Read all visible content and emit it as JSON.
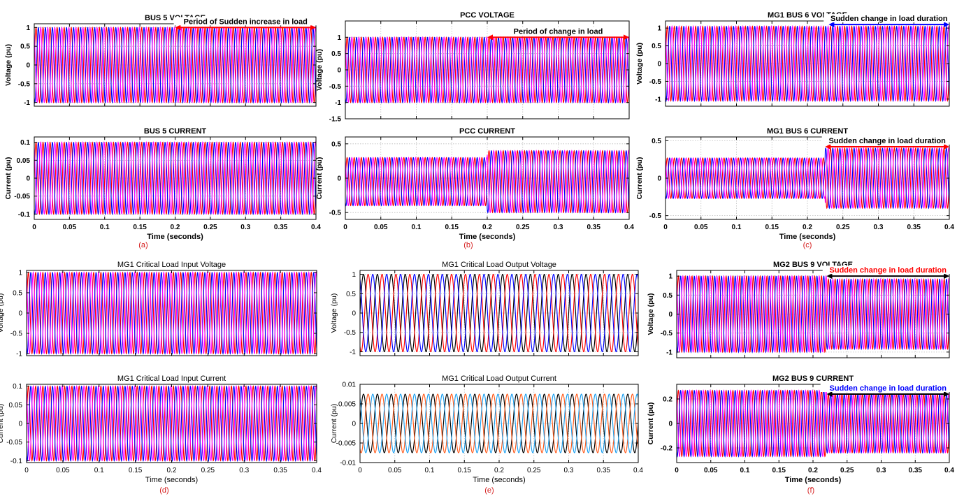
{
  "figure": {
    "subfigure_labels": [
      "(a)",
      "(b)",
      "(c)",
      "(d)",
      "(e)",
      "(f)"
    ],
    "label_color": "#d62020"
  },
  "colors": {
    "phase_a": "#ff0000",
    "phase_b": "#0000ff",
    "phase_c": "#ff00ff",
    "black": "#000000",
    "orange": "#ff5a1a",
    "light_blue": "#1ea0f0",
    "annotation_red": "#ff0000",
    "annotation_blue": "#0000ff",
    "annotation_black": "#000000",
    "grid": "#bdbdbd"
  },
  "chart_data": [
    {
      "id": "a-top",
      "type": "line",
      "title": "BUS 5 VOLTAGE",
      "title_bold": true,
      "xlabel": "",
      "ylabel": "Voltage (pu)",
      "xlim": [
        0,
        0.4
      ],
      "ylim": [
        -1.1,
        1.1
      ],
      "yticks": [
        -1,
        -0.5,
        0,
        0.5,
        1
      ],
      "ytick_labels": [
        "-1",
        "-0.5",
        "0",
        "0.5",
        "1"
      ],
      "xticks": [
        0,
        0.05,
        0.1,
        0.15,
        0.2,
        0.25,
        0.3,
        0.35,
        0.4
      ],
      "xtick_labels": [],
      "grid": true,
      "frequency_hz": 100,
      "series": [
        {
          "color": "phase_a",
          "amplitude": 1.0,
          "phase_deg": 0
        },
        {
          "color": "phase_b",
          "amplitude": 1.0,
          "phase_deg": -120
        },
        {
          "color": "phase_c",
          "amplitude": 1.0,
          "phase_deg": 120
        }
      ],
      "annotation": {
        "text": "Period of Sudden increase in load",
        "x_start": 0.2,
        "x_end": 0.4,
        "y": 1.0,
        "color": "annotation_red",
        "text_color": "annotation_black"
      }
    },
    {
      "id": "a-bottom",
      "type": "line",
      "title": "BUS 5 CURRENT",
      "title_bold": true,
      "xlabel": "Time (seconds)",
      "ylabel": "Current (pu)",
      "xlim": [
        0,
        0.4
      ],
      "ylim": [
        -0.115,
        0.115
      ],
      "yticks": [
        -0.1,
        -0.05,
        0,
        0.05,
        0.1
      ],
      "ytick_labels": [
        "-0.1",
        "-0.05",
        "0",
        "0.05",
        "0.1"
      ],
      "xticks": [
        0,
        0.05,
        0.1,
        0.15,
        0.2,
        0.25,
        0.3,
        0.35,
        0.4
      ],
      "xtick_labels": [
        "0",
        "0.05",
        "0.1",
        "0.15",
        "0.2",
        "0.25",
        "0.3",
        "0.35",
        "0.4"
      ],
      "grid": true,
      "frequency_hz": 100,
      "series": [
        {
          "color": "phase_a",
          "amplitude": 0.1,
          "phase_deg": 0
        },
        {
          "color": "phase_b",
          "amplitude": 0.1,
          "phase_deg": -120
        },
        {
          "color": "phase_c",
          "amplitude": 0.1,
          "phase_deg": 120
        }
      ]
    },
    {
      "id": "b-top",
      "type": "line",
      "title": "PCC VOLTAGE",
      "title_bold": true,
      "xlabel": "",
      "ylabel": "Voltage (pu)",
      "xlim": [
        0,
        0.4
      ],
      "ylim": [
        -1.5,
        1.5
      ],
      "yticks": [
        -1.5,
        -1,
        -0.5,
        0,
        0.5,
        1
      ],
      "ytick_labels": [
        "-1.5",
        "-1",
        "-0.5",
        "0",
        "0.5",
        "1"
      ],
      "xticks": [
        0,
        0.05,
        0.1,
        0.15,
        0.2,
        0.25,
        0.3,
        0.35,
        0.4
      ],
      "xtick_labels": [],
      "grid": true,
      "frequency_hz": 100,
      "series": [
        {
          "color": "phase_a",
          "amplitude": 1.0,
          "phase_deg": 0
        },
        {
          "color": "phase_b",
          "amplitude": 1.0,
          "phase_deg": -120
        },
        {
          "color": "phase_c",
          "amplitude": 1.0,
          "phase_deg": 120
        }
      ],
      "annotation": {
        "text": "Period of change in load",
        "x_start": 0.2,
        "x_end": 0.4,
        "y": 1.0,
        "color": "annotation_red",
        "text_color": "annotation_black"
      }
    },
    {
      "id": "b-bottom",
      "type": "line",
      "title": "PCC CURRENT",
      "title_bold": true,
      "xlabel": "Time (seconds)",
      "ylabel": "Current (pu)",
      "xlim": [
        0,
        0.4
      ],
      "ylim": [
        -0.6,
        0.6
      ],
      "yticks": [
        -0.5,
        0,
        0.5
      ],
      "ytick_labels": [
        "-0.5",
        "0",
        "0.5"
      ],
      "xticks": [
        0,
        0.05,
        0.1,
        0.15,
        0.2,
        0.25,
        0.3,
        0.35,
        0.4
      ],
      "xtick_labels": [
        "0",
        "0.05",
        "0.1",
        "0.15",
        "0.2",
        "0.25",
        "0.3",
        "0.35",
        "0.4"
      ],
      "grid": true,
      "frequency_hz": 100,
      "amplitude_before": 0.35,
      "amplitude_after": 0.45,
      "step_time": 0.2,
      "dc_offset": -0.05,
      "series": [
        {
          "color": "phase_a",
          "amplitude": 0.35,
          "phase_deg": 0
        },
        {
          "color": "phase_b",
          "amplitude": 0.35,
          "phase_deg": -120
        },
        {
          "color": "phase_c",
          "amplitude": 0.35,
          "phase_deg": 120
        }
      ]
    },
    {
      "id": "c-top",
      "type": "line",
      "title": "MG1 BUS 6 VOLTAGE",
      "title_bold": true,
      "xlabel": "",
      "ylabel": "Voltage (pu)",
      "xlim": [
        0,
        0.4
      ],
      "ylim": [
        -1.2,
        1.2
      ],
      "yticks": [
        -1,
        -0.5,
        0,
        0.5,
        1
      ],
      "ytick_labels": [
        "-1",
        "-0.5",
        "0",
        "0.5",
        "1"
      ],
      "xticks": [
        0,
        0.05,
        0.1,
        0.15,
        0.2,
        0.25,
        0.3,
        0.35,
        0.4
      ],
      "xtick_labels": [],
      "grid": true,
      "frequency_hz": 100,
      "series": [
        {
          "color": "phase_a",
          "amplitude": 1.05,
          "phase_deg": 0
        },
        {
          "color": "phase_b",
          "amplitude": 1.05,
          "phase_deg": -120
        },
        {
          "color": "phase_c",
          "amplitude": 1.05,
          "phase_deg": 120
        }
      ],
      "annotation": {
        "text": "Sudden change in load duration",
        "x_start": 0.23,
        "x_end": 0.4,
        "y": 1.1,
        "color": "annotation_blue",
        "text_color": "annotation_black"
      }
    },
    {
      "id": "c-bottom",
      "type": "line",
      "title": "MG1 BUS 6 CURRENT",
      "title_bold": true,
      "xlabel": "Time (seconds)",
      "ylabel": "Current (pu)",
      "xlim": [
        0,
        0.4
      ],
      "ylim": [
        -0.55,
        0.55
      ],
      "yticks": [
        -0.5,
        0,
        0.5
      ],
      "ytick_labels": [
        "-0.5",
        "0",
        "0.5"
      ],
      "xticks": [
        0,
        0.05,
        0.1,
        0.15,
        0.2,
        0.25,
        0.3,
        0.35,
        0.4
      ],
      "xtick_labels": [
        "0",
        "0.05",
        "0.1",
        "0.15",
        "0.2",
        "0.25",
        "0.3",
        "0.35",
        "0.4"
      ],
      "grid": true,
      "frequency_hz": 100,
      "amplitude_before": 0.27,
      "amplitude_after": 0.4,
      "step_time": 0.225,
      "series": [
        {
          "color": "phase_a",
          "amplitude": 0.27,
          "phase_deg": 0
        },
        {
          "color": "phase_b",
          "amplitude": 0.27,
          "phase_deg": -120
        },
        {
          "color": "phase_c",
          "amplitude": 0.27,
          "phase_deg": 120
        }
      ],
      "annotation": {
        "text": "Sudden change in load duration",
        "x_start": 0.225,
        "x_end": 0.4,
        "y": 0.42,
        "color": "annotation_red",
        "text_color": "annotation_black"
      }
    },
    {
      "id": "d-top",
      "type": "line",
      "title": "MG1 Critical Load Input Voltage",
      "title_bold": false,
      "xlabel": "",
      "ylabel": "Voltage (pu)",
      "xlim": [
        0,
        0.4
      ],
      "ylim": [
        -1.05,
        1.05
      ],
      "yticks": [
        -1,
        -0.5,
        0,
        0.5,
        1
      ],
      "ytick_labels": [
        "-1",
        "-0.5",
        "0",
        "0.5",
        "1"
      ],
      "xticks": [
        0,
        0.05,
        0.1,
        0.15,
        0.2,
        0.25,
        0.3,
        0.35,
        0.4
      ],
      "xtick_labels": [],
      "grid": false,
      "frequency_hz": 100,
      "series": [
        {
          "color": "phase_a",
          "amplitude": 1.0,
          "phase_deg": 0
        },
        {
          "color": "phase_b",
          "amplitude": 1.0,
          "phase_deg": -120
        },
        {
          "color": "phase_c",
          "amplitude": 1.0,
          "phase_deg": 120
        }
      ]
    },
    {
      "id": "d-bottom",
      "type": "line",
      "title": "MG1 Critical Load Input Current",
      "title_bold": false,
      "xlabel": "Time (seconds)",
      "ylabel": "Current (pu)",
      "xlim": [
        0,
        0.4
      ],
      "ylim": [
        -0.105,
        0.105
      ],
      "yticks": [
        -0.1,
        -0.05,
        0,
        0.05,
        0.1
      ],
      "ytick_labels": [
        "-0.1",
        "-0.05",
        "0",
        "0.05",
        "0.1"
      ],
      "xticks": [
        0,
        0.05,
        0.1,
        0.15,
        0.2,
        0.25,
        0.3,
        0.35,
        0.4
      ],
      "xtick_labels": [
        "0",
        "0.05",
        "0.1",
        "0.15",
        "0.2",
        "0.25",
        "0.3",
        "0.35",
        "0.4"
      ],
      "grid": false,
      "frequency_hz": 100,
      "series": [
        {
          "color": "phase_a",
          "amplitude": 0.1,
          "phase_deg": 0
        },
        {
          "color": "phase_b",
          "amplitude": 0.1,
          "phase_deg": -120
        },
        {
          "color": "phase_c",
          "amplitude": 0.1,
          "phase_deg": 120
        }
      ]
    },
    {
      "id": "e-top",
      "type": "line",
      "title": "MG1 Critical  Load  Output  Voltage",
      "title_bold": false,
      "xlabel": "",
      "ylabel": "Voltage (pu)",
      "xlim": [
        0,
        0.4
      ],
      "ylim": [
        -1.1,
        1.1
      ],
      "yticks": [
        -1,
        -0.5,
        0,
        0.5,
        1
      ],
      "ytick_labels": [
        "-1",
        "-0.5",
        "0",
        "0.5",
        "1"
      ],
      "xticks": [
        0,
        0.05,
        0.1,
        0.15,
        0.2,
        0.25,
        0.3,
        0.35,
        0.4
      ],
      "xtick_labels": [],
      "grid": true,
      "frequency_hz": 50,
      "series": [
        {
          "color": "black",
          "amplitude": 1.0,
          "phase_deg": 0
        },
        {
          "color": "phase_a",
          "amplitude": 1.0,
          "phase_deg": -120
        },
        {
          "color": "phase_b",
          "amplitude": 1.0,
          "phase_deg": 120
        }
      ]
    },
    {
      "id": "e-bottom",
      "type": "line",
      "title": "MG1 Critical Load Output  Current",
      "title_bold": false,
      "xlabel": "Time (seconds)",
      "ylabel": "Current (pu)",
      "xlim": [
        0,
        0.4
      ],
      "ylim": [
        -0.01,
        0.01
      ],
      "yticks": [
        -0.01,
        -0.005,
        0,
        0.005,
        0.01
      ],
      "ytick_labels": [
        "-0.01",
        "-0.005",
        "0",
        "0.005",
        "0.01"
      ],
      "xticks": [
        0,
        0.05,
        0.1,
        0.15,
        0.2,
        0.25,
        0.3,
        0.35,
        0.4
      ],
      "xtick_labels": [
        "0",
        "0.05",
        "0.1",
        "0.15",
        "0.2",
        "0.25",
        "0.3",
        "0.35",
        "0.4"
      ],
      "grid": true,
      "frequency_hz": 50,
      "series": [
        {
          "color": "black",
          "amplitude": 0.0075,
          "phase_deg": 0
        },
        {
          "color": "orange",
          "amplitude": 0.0075,
          "phase_deg": -120
        },
        {
          "color": "light_blue",
          "amplitude": 0.0075,
          "phase_deg": 120
        }
      ]
    },
    {
      "id": "f-top",
      "type": "line",
      "title": "MG2  BUS 9 VOLTAGE",
      "title_bold": true,
      "xlabel": "",
      "ylabel": "Voltage (pu)",
      "xlim": [
        0,
        0.4
      ],
      "ylim": [
        -1.15,
        1.15
      ],
      "yticks": [
        -1,
        -0.5,
        0,
        0.5,
        1
      ],
      "ytick_labels": [
        "-1",
        "-0.5",
        "0",
        "0.5",
        "1"
      ],
      "xticks": [
        0,
        0.05,
        0.1,
        0.15,
        0.2,
        0.25,
        0.3,
        0.35,
        0.4
      ],
      "xtick_labels": [],
      "grid": true,
      "frequency_hz": 100,
      "amplitude_before": 1.0,
      "amplitude_after": 0.92,
      "step_time": 0.22,
      "series": [
        {
          "color": "phase_a",
          "amplitude": 1.0,
          "phase_deg": 0
        },
        {
          "color": "phase_b",
          "amplitude": 1.0,
          "phase_deg": -120
        },
        {
          "color": "phase_c",
          "amplitude": 1.0,
          "phase_deg": 120
        }
      ],
      "annotation": {
        "text": "Sudden change in load duration",
        "x_start": 0.22,
        "x_end": 0.4,
        "y": 1.0,
        "color": "annotation_black",
        "text_color": "annotation_red"
      }
    },
    {
      "id": "f-bottom",
      "type": "line",
      "title": "MG2  BUS 9 CURRENT",
      "title_bold": true,
      "xlabel": "Time (seconds)",
      "ylabel": "Current (pu)",
      "xlim": [
        0,
        0.4
      ],
      "ylim": [
        -0.32,
        0.32
      ],
      "yticks": [
        -0.2,
        0,
        0.2
      ],
      "ytick_labels": [
        "-0.2",
        "0",
        "0.2"
      ],
      "xticks": [
        0,
        0.05,
        0.1,
        0.15,
        0.2,
        0.25,
        0.3,
        0.35,
        0.4
      ],
      "xtick_labels": [
        "0",
        "0.05",
        "0.1",
        "0.15",
        "0.2",
        "0.25",
        "0.3",
        "0.35",
        "0.4"
      ],
      "grid": true,
      "frequency_hz": 100,
      "amplitude_before": 0.27,
      "amplitude_after": 0.24,
      "step_time": 0.22,
      "series": [
        {
          "color": "phase_a",
          "amplitude": 0.27,
          "phase_deg": 0
        },
        {
          "color": "phase_b",
          "amplitude": 0.27,
          "phase_deg": -120
        },
        {
          "color": "phase_c",
          "amplitude": 0.27,
          "phase_deg": 120
        }
      ],
      "annotation": {
        "text": "Sudden  change in load duration",
        "x_start": 0.22,
        "x_end": 0.4,
        "y": 0.24,
        "color": "annotation_black",
        "text_color": "annotation_blue"
      }
    }
  ]
}
